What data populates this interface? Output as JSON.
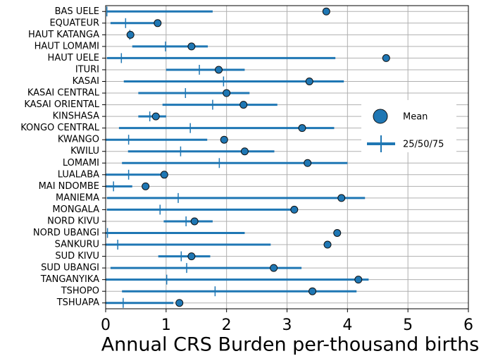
{
  "chart_data": {
    "type": "range-dot",
    "xlabel": "Annual CRS Burden per-thousand births",
    "categories": [
      "BAS UELE",
      "EQUATEUR",
      "HAUT KATANGA",
      "HAUT LOMAMI",
      "HAUT UELE",
      "ITURI",
      "KASAI",
      "KASAI CENTRAL",
      "KASAI ORIENTAL",
      "KINSHASA",
      "KONGO CENTRAL",
      "KWANGO",
      "KWILU",
      "LOMAMI",
      "LUALABA",
      "MAI NDOMBE",
      "MANIEMA",
      "MONGALA",
      "NORD KIVU",
      "NORD UBANGI",
      "SANKURU",
      "SUD KIVU",
      "SUD UBANGI",
      "TANGANYIKA",
      "TSHOPO",
      "TSHUAPA"
    ],
    "series": [
      {
        "name": "Mean",
        "color": "#1f77b4",
        "values": [
          3.65,
          0.86,
          0.41,
          1.42,
          4.64,
          1.87,
          3.37,
          2.0,
          2.28,
          0.83,
          3.25,
          1.96,
          2.3,
          3.34,
          0.97,
          0.66,
          3.9,
          3.12,
          1.47,
          3.83,
          3.67,
          1.42,
          2.78,
          4.18,
          3.42,
          1.22
        ]
      },
      {
        "name": "25/50/75",
        "color": "#1f77b4",
        "low": [
          0.02,
          0.08,
          0.35,
          0.44,
          0.02,
          1.0,
          0.3,
          0.54,
          0.94,
          0.54,
          0.22,
          0.0,
          0.37,
          0.27,
          0.0,
          0.0,
          0.02,
          0.02,
          0.96,
          0.0,
          0.0,
          0.87,
          0.08,
          0.0,
          0.27,
          0.0
        ],
        "values": [
          0.02,
          0.33,
          0.4,
          0.99,
          0.26,
          1.55,
          1.95,
          1.32,
          1.77,
          0.73,
          1.4,
          0.38,
          1.24,
          1.88,
          0.38,
          0.13,
          1.2,
          0.9,
          1.33,
          0.03,
          0.2,
          1.25,
          1.34,
          1.01,
          1.81,
          0.29
        ],
        "high": [
          1.77,
          0.86,
          0.44,
          1.69,
          3.8,
          2.3,
          3.94,
          2.38,
          2.84,
          1.0,
          3.78,
          1.68,
          2.79,
          4.0,
          0.97,
          0.44,
          4.29,
          3.12,
          1.77,
          2.3,
          2.73,
          1.73,
          3.24,
          4.35,
          4.15,
          1.12
        ]
      }
    ],
    "xlim": [
      0,
      6
    ],
    "xticks": [
      0,
      1,
      2,
      3,
      4,
      5,
      6
    ],
    "grid": true,
    "legend": "right"
  }
}
